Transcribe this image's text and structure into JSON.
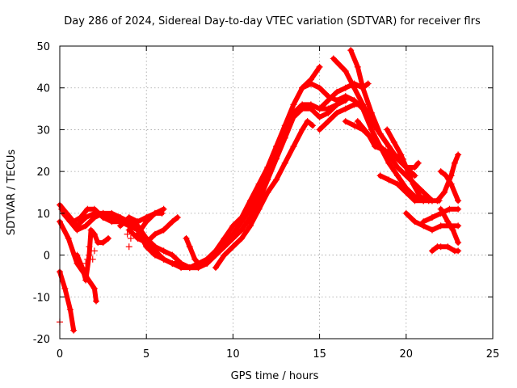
{
  "chart_data": {
    "type": "line",
    "title": "Day 286 of 2024, Sidereal Day-to-day VTEC variation (SDTVAR) for receiver flrs",
    "xlabel": "GPS time / hours",
    "ylabel": "SDTVAR / TECUs",
    "xlim": [
      0,
      25
    ],
    "ylim": [
      -20,
      50
    ],
    "xticks": [
      0,
      5,
      10,
      15,
      20,
      25
    ],
    "yticks": [
      -20,
      -10,
      0,
      10,
      20,
      30,
      40,
      50
    ],
    "grid": true,
    "marker": "plus",
    "color": "#ff0000",
    "series": [
      {
        "name": "s1",
        "points": [
          [
            0,
            12
          ],
          [
            0.4,
            10
          ],
          [
            0.8,
            8
          ],
          [
            1.2,
            9
          ],
          [
            1.6,
            11
          ],
          [
            2.0,
            11
          ],
          [
            2.5,
            9
          ],
          [
            3.0,
            8
          ],
          [
            3.5,
            8
          ],
          [
            4.0,
            7
          ],
          [
            4.5,
            6
          ],
          [
            5.0,
            4
          ],
          [
            5.5,
            2
          ],
          [
            6.0,
            1
          ],
          [
            6.5,
            0
          ],
          [
            7.0,
            -2
          ],
          [
            7.5,
            -3
          ],
          [
            8.0,
            -3
          ],
          [
            8.5,
            -2
          ],
          [
            9.0,
            1
          ],
          [
            9.5,
            4
          ],
          [
            10.0,
            7
          ],
          [
            10.5,
            9
          ],
          [
            11.0,
            13
          ],
          [
            11.5,
            17
          ],
          [
            12.0,
            21
          ],
          [
            12.5,
            26
          ],
          [
            13.0,
            31
          ],
          [
            13.5,
            36
          ],
          [
            14.0,
            40
          ],
          [
            14.5,
            41
          ],
          [
            15.0,
            40
          ],
          [
            15.5,
            38
          ],
          [
            16.0,
            37
          ],
          [
            16.5,
            38
          ],
          [
            17.0,
            37
          ],
          [
            17.5,
            35
          ],
          [
            18.0,
            30
          ],
          [
            18.5,
            26
          ],
          [
            19.0,
            22
          ],
          [
            19.5,
            19
          ],
          [
            20.0,
            16
          ],
          [
            20.5,
            14
          ],
          [
            21.0,
            13
          ],
          [
            21.5,
            13
          ]
        ]
      },
      {
        "name": "s2",
        "points": [
          [
            0.1,
            11
          ],
          [
            0.5,
            9
          ],
          [
            1.0,
            7
          ],
          [
            1.5,
            9
          ],
          [
            2.0,
            10
          ],
          [
            2.5,
            10
          ],
          [
            3.0,
            9
          ],
          [
            3.5,
            8
          ],
          [
            4.0,
            8
          ],
          [
            4.5,
            6
          ],
          [
            5.0,
            2
          ],
          [
            5.5,
            0
          ],
          [
            6.0,
            -1
          ],
          [
            6.5,
            -2
          ],
          [
            7.0,
            -3
          ],
          [
            7.5,
            -3
          ],
          [
            8.0,
            -2
          ],
          [
            8.5,
            -1
          ],
          [
            9.0,
            1
          ],
          [
            9.5,
            3
          ],
          [
            10.0,
            5
          ],
          [
            10.5,
            8
          ],
          [
            11.0,
            11
          ],
          [
            11.5,
            15
          ],
          [
            12.0,
            19
          ],
          [
            12.5,
            25
          ],
          [
            13.0,
            30
          ],
          [
            13.5,
            34
          ],
          [
            14.0,
            36
          ],
          [
            14.5,
            36
          ],
          [
            15.0,
            35
          ],
          [
            15.5,
            35
          ],
          [
            16.0,
            36
          ],
          [
            16.5,
            37
          ]
        ]
      },
      {
        "name": "s3",
        "points": [
          [
            0.2,
            10
          ],
          [
            0.6,
            8
          ],
          [
            1.0,
            6
          ],
          [
            1.5,
            7
          ],
          [
            2.0,
            9
          ],
          [
            2.5,
            10
          ],
          [
            3.0,
            10
          ],
          [
            3.5,
            9
          ],
          [
            4.0,
            8
          ],
          [
            4.5,
            7
          ],
          [
            5.0,
            4
          ],
          [
            5.5,
            1
          ],
          [
            6.0,
            -1
          ],
          [
            6.5,
            -2
          ],
          [
            7.0,
            -2
          ],
          [
            7.5,
            -3
          ],
          [
            8.0,
            -3
          ],
          [
            8.5,
            -2
          ],
          [
            9.0,
            0
          ],
          [
            9.5,
            2
          ],
          [
            10.0,
            4
          ],
          [
            10.5,
            6
          ],
          [
            11.0,
            9
          ],
          [
            11.5,
            13
          ],
          [
            12.0,
            18
          ],
          [
            12.5,
            23
          ],
          [
            13.0,
            28
          ],
          [
            13.5,
            33
          ],
          [
            14.0,
            35
          ],
          [
            14.5,
            35
          ],
          [
            15.0,
            33
          ],
          [
            15.5,
            34
          ],
          [
            16.0,
            36
          ]
        ]
      },
      {
        "name": "s4",
        "points": [
          [
            0,
            8
          ],
          [
            0.5,
            4
          ],
          [
            1.0,
            -2
          ],
          [
            1.5,
            -5
          ],
          [
            2.0,
            -8
          ],
          [
            2.1,
            -11
          ]
        ]
      },
      {
        "name": "s5",
        "points": [
          [
            0,
            -4
          ],
          [
            0.3,
            -8
          ],
          [
            0.6,
            -13
          ],
          [
            0.8,
            -18
          ]
        ]
      },
      {
        "name": "s6",
        "points": [
          [
            1.0,
            0
          ],
          [
            1.3,
            -3
          ],
          [
            1.5,
            -6
          ],
          [
            1.7,
            0
          ],
          [
            1.8,
            6
          ],
          [
            2.0,
            5
          ],
          [
            2.2,
            3
          ],
          [
            2.5,
            3
          ],
          [
            2.8,
            4
          ]
        ]
      },
      {
        "name": "s7",
        "points": [
          [
            3.5,
            7
          ],
          [
            4.0,
            9
          ],
          [
            4.5,
            8
          ],
          [
            5.0,
            9
          ],
          [
            5.5,
            10
          ],
          [
            6.0,
            11
          ]
        ]
      },
      {
        "name": "s8",
        "points": [
          [
            4.5,
            5
          ],
          [
            5.0,
            8
          ],
          [
            5.5,
            10
          ],
          [
            5.9,
            10
          ]
        ]
      },
      {
        "name": "s9",
        "points": [
          [
            4.0,
            6
          ],
          [
            4.5,
            4
          ],
          [
            5.0,
            3
          ],
          [
            5.5,
            5
          ],
          [
            6.0,
            6
          ],
          [
            6.5,
            8
          ],
          [
            6.8,
            9
          ]
        ]
      },
      {
        "name": "s10",
        "points": [
          [
            7.3,
            4
          ],
          [
            7.5,
            2
          ],
          [
            7.8,
            -1
          ],
          [
            8.0,
            -2
          ]
        ]
      },
      {
        "name": "s11",
        "points": [
          [
            9.0,
            -3
          ],
          [
            9.5,
            0
          ],
          [
            10.0,
            2
          ],
          [
            10.5,
            4
          ],
          [
            11.0,
            7
          ],
          [
            11.5,
            11
          ],
          [
            12.0,
            15
          ],
          [
            12.5,
            18
          ],
          [
            13.0,
            22
          ],
          [
            13.5,
            26
          ],
          [
            14.0,
            30
          ],
          [
            14.3,
            32
          ],
          [
            14.6,
            31
          ]
        ]
      },
      {
        "name": "s12",
        "points": [
          [
            14.0,
            40
          ],
          [
            14.5,
            42
          ],
          [
            15.0,
            45
          ]
        ]
      },
      {
        "name": "s13",
        "points": [
          [
            15.0,
            30
          ],
          [
            15.5,
            32
          ],
          [
            16.0,
            34
          ],
          [
            16.5,
            35
          ],
          [
            17.0,
            36
          ],
          [
            17.5,
            36
          ]
        ]
      },
      {
        "name": "s14",
        "points": [
          [
            15.0,
            35
          ],
          [
            15.5,
            37
          ],
          [
            16.0,
            39
          ],
          [
            16.5,
            40
          ],
          [
            17.0,
            41
          ],
          [
            17.5,
            40
          ],
          [
            17.8,
            41
          ]
        ]
      },
      {
        "name": "s15",
        "points": [
          [
            15.8,
            47
          ],
          [
            16.5,
            44
          ],
          [
            17.0,
            40
          ],
          [
            17.5,
            36
          ],
          [
            18.0,
            32
          ],
          [
            18.5,
            29
          ],
          [
            19.0,
            26
          ],
          [
            19.5,
            23
          ],
          [
            20.0,
            21
          ],
          [
            20.5,
            21
          ],
          [
            20.7,
            22
          ]
        ]
      },
      {
        "name": "s16",
        "points": [
          [
            16.8,
            49
          ],
          [
            17.2,
            45
          ],
          [
            17.5,
            40
          ],
          [
            18.0,
            34
          ],
          [
            18.5,
            29
          ],
          [
            19.0,
            26
          ],
          [
            19.5,
            23
          ],
          [
            20.0,
            21
          ],
          [
            20.5,
            19
          ]
        ]
      },
      {
        "name": "s17",
        "points": [
          [
            16.5,
            32
          ],
          [
            17.0,
            31
          ],
          [
            17.5,
            30
          ],
          [
            18.0,
            28
          ],
          [
            18.5,
            26
          ],
          [
            19.0,
            24
          ],
          [
            19.5,
            21
          ],
          [
            20.0,
            19
          ],
          [
            20.5,
            17
          ],
          [
            21.0,
            15
          ],
          [
            21.5,
            13
          ],
          [
            21.9,
            13
          ]
        ]
      },
      {
        "name": "s18",
        "points": [
          [
            17.2,
            32
          ],
          [
            17.8,
            29
          ],
          [
            18.2,
            26
          ],
          [
            18.8,
            25
          ],
          [
            19.3,
            24
          ],
          [
            19.8,
            23
          ]
        ]
      },
      {
        "name": "s19",
        "points": [
          [
            18.9,
            30
          ],
          [
            19.3,
            27
          ],
          [
            19.7,
            24
          ],
          [
            20.0,
            21
          ],
          [
            20.4,
            17
          ],
          [
            20.8,
            14
          ],
          [
            21.3,
            13
          ]
        ]
      },
      {
        "name": "s20",
        "points": [
          [
            18.5,
            19
          ],
          [
            19.0,
            18
          ],
          [
            19.5,
            17
          ],
          [
            20.0,
            15
          ],
          [
            20.5,
            13
          ],
          [
            21.0,
            13
          ]
        ]
      },
      {
        "name": "s21",
        "points": [
          [
            20.0,
            10
          ],
          [
            20.5,
            8
          ],
          [
            21.0,
            7
          ],
          [
            21.5,
            6
          ],
          [
            22.0,
            7
          ],
          [
            22.5,
            7
          ],
          [
            23.0,
            7
          ]
        ]
      },
      {
        "name": "s22",
        "points": [
          [
            21.0,
            8
          ],
          [
            21.5,
            9
          ],
          [
            22.0,
            10
          ],
          [
            22.5,
            11
          ],
          [
            23.0,
            11
          ]
        ]
      },
      {
        "name": "s23",
        "points": [
          [
            21.8,
            13
          ],
          [
            22.2,
            15
          ],
          [
            22.6,
            19
          ],
          [
            22.8,
            22
          ],
          [
            23.0,
            24
          ]
        ]
      },
      {
        "name": "s24",
        "points": [
          [
            22.0,
            20
          ],
          [
            22.3,
            19
          ],
          [
            22.6,
            17
          ],
          [
            23.0,
            13
          ]
        ]
      },
      {
        "name": "s25",
        "points": [
          [
            22.0,
            11
          ],
          [
            22.4,
            8
          ],
          [
            22.7,
            6
          ],
          [
            23.0,
            3
          ]
        ]
      },
      {
        "name": "s26",
        "points": [
          [
            21.5,
            1
          ],
          [
            21.8,
            2
          ],
          [
            22.0,
            2
          ],
          [
            22.4,
            2
          ],
          [
            22.8,
            1
          ],
          [
            23.0,
            1
          ]
        ]
      }
    ],
    "scattered_points": [
      [
        0,
        -16
      ],
      [
        1.5,
        -2
      ],
      [
        1.6,
        -1
      ],
      [
        1.7,
        2
      ],
      [
        1.9,
        -1
      ],
      [
        2.0,
        1
      ],
      [
        4.1,
        4
      ],
      [
        4.0,
        2
      ],
      [
        3.9,
        5
      ]
    ]
  }
}
